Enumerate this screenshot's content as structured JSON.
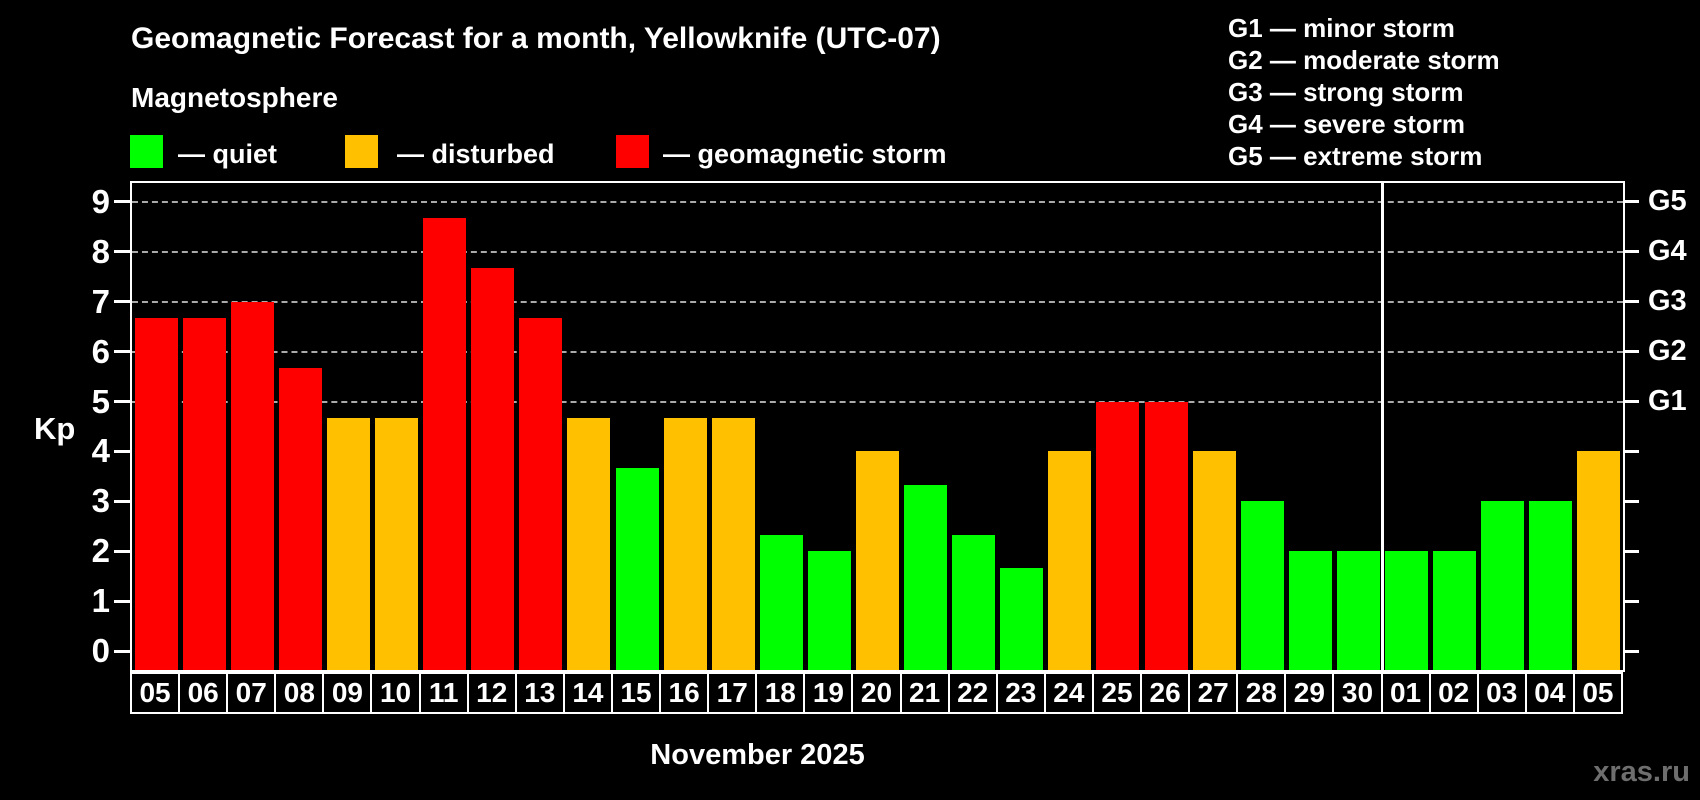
{
  "title": "Geomagnetic Forecast for a month, Yellowknife (UTC-07)",
  "subtitle": "Magnetosphere",
  "magnetosphere_legend": [
    {
      "label": "— quiet",
      "status": "quiet",
      "color": "#00ff00"
    },
    {
      "label": "— disturbed",
      "status": "disturbed",
      "color": "#ffc000"
    },
    {
      "label": "— geomagnetic storm",
      "status": "storm",
      "color": "#ff0000"
    }
  ],
  "storm_scale_legend": [
    "G1 — minor storm",
    "G2 — moderate storm",
    "G3 — strong storm",
    "G4 — severe storm",
    "G5 — extreme storm"
  ],
  "watermark": "xras.ru",
  "chart_data": {
    "type": "bar",
    "title": "Geomagnetic Forecast for a month, Yellowknife (UTC-07)",
    "xlabel": "November 2025",
    "ylabel": "Kp",
    "ylim": [
      -0.375,
      9.375
    ],
    "y_ticks": [
      0,
      1,
      2,
      3,
      4,
      5,
      6,
      7,
      8,
      9
    ],
    "gridlines_at_kp": [
      5,
      6,
      7,
      8,
      9
    ],
    "grid": "dashed horizontal at storm levels only",
    "right_axis_labels": [
      {
        "label": "G1",
        "kp": 5
      },
      {
        "label": "G2",
        "kp": 6
      },
      {
        "label": "G3",
        "kp": 7
      },
      {
        "label": "G4",
        "kp": 8
      },
      {
        "label": "G5",
        "kp": 9
      }
    ],
    "status_colors": {
      "quiet": "#00ff00",
      "disturbed": "#ffc000",
      "storm": "#ff0000"
    },
    "month_separator_after_index": 25,
    "days": [
      {
        "date": "05",
        "kp": 6.67,
        "status": "storm"
      },
      {
        "date": "06",
        "kp": 6.67,
        "status": "storm"
      },
      {
        "date": "07",
        "kp": 7.0,
        "status": "storm"
      },
      {
        "date": "08",
        "kp": 5.67,
        "status": "storm"
      },
      {
        "date": "09",
        "kp": 4.67,
        "status": "disturbed"
      },
      {
        "date": "10",
        "kp": 4.67,
        "status": "disturbed"
      },
      {
        "date": "11",
        "kp": 8.67,
        "status": "storm"
      },
      {
        "date": "12",
        "kp": 7.67,
        "status": "storm"
      },
      {
        "date": "13",
        "kp": 6.67,
        "status": "storm"
      },
      {
        "date": "14",
        "kp": 4.67,
        "status": "disturbed"
      },
      {
        "date": "15",
        "kp": 3.67,
        "status": "quiet"
      },
      {
        "date": "16",
        "kp": 4.67,
        "status": "disturbed"
      },
      {
        "date": "17",
        "kp": 4.67,
        "status": "disturbed"
      },
      {
        "date": "18",
        "kp": 2.33,
        "status": "quiet"
      },
      {
        "date": "19",
        "kp": 2.0,
        "status": "quiet"
      },
      {
        "date": "20",
        "kp": 4.0,
        "status": "disturbed"
      },
      {
        "date": "21",
        "kp": 3.33,
        "status": "quiet"
      },
      {
        "date": "22",
        "kp": 2.33,
        "status": "quiet"
      },
      {
        "date": "23",
        "kp": 1.67,
        "status": "quiet"
      },
      {
        "date": "24",
        "kp": 4.0,
        "status": "disturbed"
      },
      {
        "date": "25",
        "kp": 5.0,
        "status": "storm"
      },
      {
        "date": "26",
        "kp": 5.0,
        "status": "storm"
      },
      {
        "date": "27",
        "kp": 4.0,
        "status": "disturbed"
      },
      {
        "date": "28",
        "kp": 3.0,
        "status": "quiet"
      },
      {
        "date": "29",
        "kp": 2.0,
        "status": "quiet"
      },
      {
        "date": "30",
        "kp": 2.0,
        "status": "quiet"
      },
      {
        "date": "01",
        "kp": 2.0,
        "status": "quiet"
      },
      {
        "date": "02",
        "kp": 2.0,
        "status": "quiet"
      },
      {
        "date": "03",
        "kp": 3.0,
        "status": "quiet"
      },
      {
        "date": "04",
        "kp": 3.0,
        "status": "quiet"
      },
      {
        "date": "05",
        "kp": 4.0,
        "status": "disturbed"
      }
    ]
  }
}
